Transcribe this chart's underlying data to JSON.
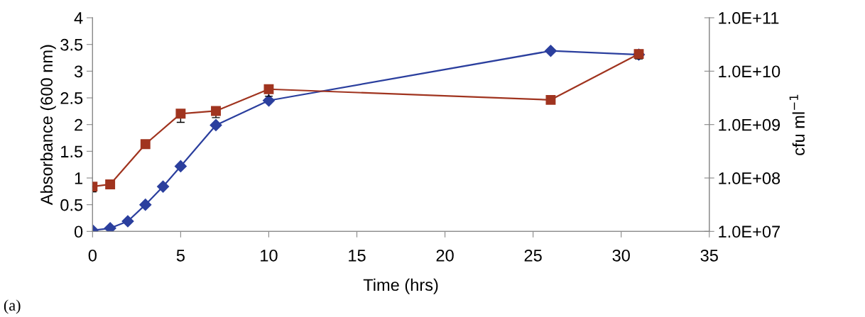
{
  "chart_data": {
    "type": "line",
    "xlabel": "Time (hrs)",
    "ylabel": "Absorbance (600 nm)",
    "y2label": "cfu ml$^{−1}$",
    "annotations": [
      "(a)"
    ],
    "xlim": [
      0,
      35
    ],
    "xticks": [
      0,
      5,
      10,
      15,
      20,
      25,
      30,
      35
    ],
    "ylim": [
      0,
      4
    ],
    "yticks": [
      0,
      0.5,
      1,
      1.5,
      2,
      2.5,
      3,
      3.5,
      4
    ],
    "log": "y2",
    "y2lim": [
      10000000.0,
      100000000000.0
    ],
    "y2ticks": [
      {
        "value": 10000000.0,
        "label": "1.0E+07"
      },
      {
        "value": 100000000.0,
        "label": "1.0E+08"
      },
      {
        "value": 1000000000.0,
        "label": "1.0E+09"
      },
      {
        "value": 10000000000.0,
        "label": "1.0E+10"
      },
      {
        "value": 100000000000.0,
        "label": "1.0E+11"
      }
    ],
    "grid": false,
    "line_style": "solid",
    "series": [
      {
        "color": "#2b3f9e",
        "marker": "diamond",
        "x": [
          0,
          1,
          2,
          3,
          4,
          5,
          7,
          10,
          26,
          31
        ],
        "values": [
          0.02,
          0.06,
          0.19,
          0.5,
          0.84,
          1.22,
          1.99,
          2.45,
          3.38,
          3.31
        ]
      },
      {
        "color": "#a0341f",
        "marker": "square",
        "axis": "y2",
        "x": [
          0,
          1,
          3,
          5,
          7,
          10,
          26,
          31
        ],
        "values": [
          69000000.0,
          76000000.0,
          430000000.0,
          1600000000.0,
          1800000000.0,
          4600000000.0,
          2900000000.0,
          21000000000.0
        ],
        "errors": [
          [
            55000000.0,
            69000000.0
          ],
          null,
          null,
          [
            1100000000.0,
            1900000000.0
          ],
          [
            1350000000.0,
            1800000000.0
          ],
          [
            3400000000.0,
            4600000000.0
          ],
          null,
          [
            17000000000.0,
            21000000000.0
          ]
        ]
      }
    ]
  }
}
